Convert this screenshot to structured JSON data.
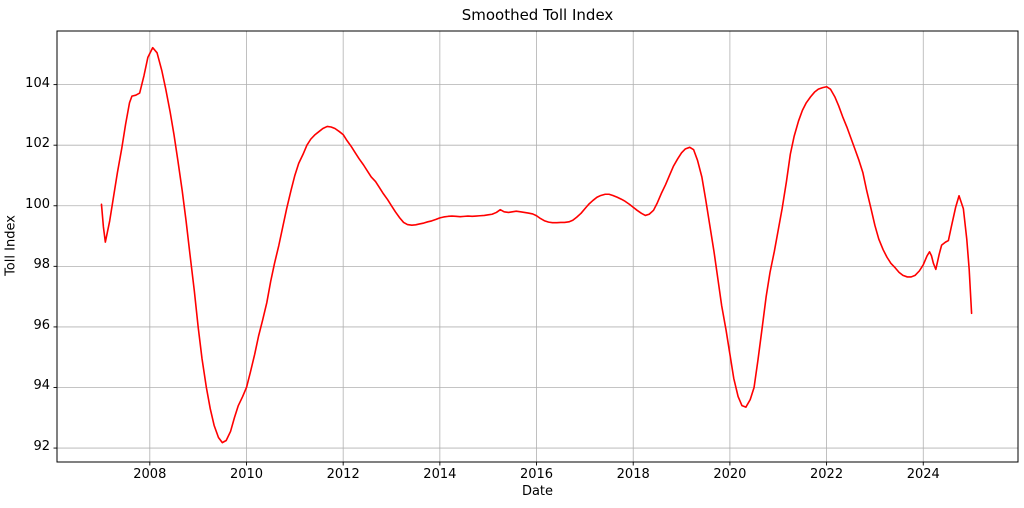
{
  "chart_data": {
    "type": "line",
    "title": "Smoothed Toll Index",
    "xlabel": "Date",
    "ylabel": "Toll Index",
    "xlim": [
      2006.08,
      2025.96
    ],
    "ylim": [
      91.54,
      105.77
    ],
    "xticks": [
      2008,
      2010,
      2012,
      2014,
      2016,
      2018,
      2020,
      2022,
      2024
    ],
    "xtick_labels": [
      "2008",
      "2010",
      "2012",
      "2014",
      "2016",
      "2018",
      "2020",
      "2022",
      "2024"
    ],
    "yticks": [
      92,
      94,
      96,
      98,
      100,
      102,
      104
    ],
    "ytick_labels": [
      "92",
      "94",
      "96",
      "98",
      "100",
      "102",
      "104"
    ],
    "grid": true,
    "legend": "none",
    "line_color": "#ff0000",
    "grid_color": "#b0b0b0",
    "frame_color": "#000000",
    "line_width": 1.6,
    "series": [
      {
        "name": "Smoothed Toll Index",
        "points": [
          [
            2007.0,
            100.05
          ],
          [
            2007.04,
            99.3
          ],
          [
            2007.08,
            98.8
          ],
          [
            2007.17,
            99.5
          ],
          [
            2007.25,
            100.3
          ],
          [
            2007.33,
            101.1
          ],
          [
            2007.42,
            101.9
          ],
          [
            2007.5,
            102.7
          ],
          [
            2007.58,
            103.4
          ],
          [
            2007.63,
            103.62
          ],
          [
            2007.71,
            103.65
          ],
          [
            2007.79,
            103.72
          ],
          [
            2007.88,
            104.3
          ],
          [
            2007.96,
            104.9
          ],
          [
            2008.06,
            105.22
          ],
          [
            2008.15,
            105.05
          ],
          [
            2008.25,
            104.45
          ],
          [
            2008.33,
            103.85
          ],
          [
            2008.42,
            103.1
          ],
          [
            2008.5,
            102.35
          ],
          [
            2008.58,
            101.5
          ],
          [
            2008.67,
            100.5
          ],
          [
            2008.75,
            99.5
          ],
          [
            2008.83,
            98.4
          ],
          [
            2008.92,
            97.2
          ],
          [
            2009.0,
            96.0
          ],
          [
            2009.08,
            94.95
          ],
          [
            2009.17,
            94.0
          ],
          [
            2009.25,
            93.3
          ],
          [
            2009.33,
            92.75
          ],
          [
            2009.42,
            92.35
          ],
          [
            2009.5,
            92.18
          ],
          [
            2009.58,
            92.25
          ],
          [
            2009.67,
            92.55
          ],
          [
            2009.75,
            93.0
          ],
          [
            2009.83,
            93.4
          ],
          [
            2009.92,
            93.7
          ],
          [
            2010.0,
            94.0
          ],
          [
            2010.08,
            94.5
          ],
          [
            2010.17,
            95.1
          ],
          [
            2010.25,
            95.7
          ],
          [
            2010.33,
            96.2
          ],
          [
            2010.42,
            96.8
          ],
          [
            2010.5,
            97.5
          ],
          [
            2010.58,
            98.1
          ],
          [
            2010.67,
            98.7
          ],
          [
            2010.75,
            99.3
          ],
          [
            2010.83,
            99.9
          ],
          [
            2010.92,
            100.5
          ],
          [
            2011.0,
            101.0
          ],
          [
            2011.08,
            101.4
          ],
          [
            2011.17,
            101.7
          ],
          [
            2011.25,
            102.0
          ],
          [
            2011.33,
            102.2
          ],
          [
            2011.42,
            102.35
          ],
          [
            2011.5,
            102.45
          ],
          [
            2011.58,
            102.55
          ],
          [
            2011.67,
            102.62
          ],
          [
            2011.75,
            102.6
          ],
          [
            2011.83,
            102.55
          ],
          [
            2011.92,
            102.45
          ],
          [
            2012.0,
            102.35
          ],
          [
            2012.08,
            102.15
          ],
          [
            2012.17,
            101.95
          ],
          [
            2012.25,
            101.75
          ],
          [
            2012.33,
            101.55
          ],
          [
            2012.42,
            101.35
          ],
          [
            2012.5,
            101.15
          ],
          [
            2012.58,
            100.95
          ],
          [
            2012.67,
            100.8
          ],
          [
            2012.75,
            100.6
          ],
          [
            2012.83,
            100.4
          ],
          [
            2012.92,
            100.2
          ],
          [
            2013.0,
            100.0
          ],
          [
            2013.08,
            99.8
          ],
          [
            2013.17,
            99.6
          ],
          [
            2013.25,
            99.45
          ],
          [
            2013.33,
            99.38
          ],
          [
            2013.42,
            99.36
          ],
          [
            2013.5,
            99.37
          ],
          [
            2013.58,
            99.4
          ],
          [
            2013.67,
            99.43
          ],
          [
            2013.75,
            99.47
          ],
          [
            2013.83,
            99.5
          ],
          [
            2013.92,
            99.55
          ],
          [
            2014.0,
            99.6
          ],
          [
            2014.08,
            99.63
          ],
          [
            2014.17,
            99.65
          ],
          [
            2014.25,
            99.66
          ],
          [
            2014.33,
            99.65
          ],
          [
            2014.42,
            99.64
          ],
          [
            2014.5,
            99.65
          ],
          [
            2014.58,
            99.66
          ],
          [
            2014.67,
            99.65
          ],
          [
            2014.75,
            99.66
          ],
          [
            2014.83,
            99.67
          ],
          [
            2014.92,
            99.68
          ],
          [
            2015.0,
            99.7
          ],
          [
            2015.08,
            99.72
          ],
          [
            2015.17,
            99.78
          ],
          [
            2015.25,
            99.87
          ],
          [
            2015.33,
            99.8
          ],
          [
            2015.42,
            99.78
          ],
          [
            2015.5,
            99.8
          ],
          [
            2015.58,
            99.82
          ],
          [
            2015.67,
            99.8
          ],
          [
            2015.75,
            99.78
          ],
          [
            2015.83,
            99.76
          ],
          [
            2015.92,
            99.73
          ],
          [
            2016.0,
            99.67
          ],
          [
            2016.08,
            99.58
          ],
          [
            2016.17,
            99.5
          ],
          [
            2016.25,
            99.46
          ],
          [
            2016.33,
            99.44
          ],
          [
            2016.42,
            99.44
          ],
          [
            2016.5,
            99.45
          ],
          [
            2016.58,
            99.45
          ],
          [
            2016.67,
            99.47
          ],
          [
            2016.75,
            99.52
          ],
          [
            2016.83,
            99.62
          ],
          [
            2016.92,
            99.75
          ],
          [
            2017.0,
            99.9
          ],
          [
            2017.08,
            100.05
          ],
          [
            2017.17,
            100.18
          ],
          [
            2017.25,
            100.28
          ],
          [
            2017.33,
            100.34
          ],
          [
            2017.42,
            100.38
          ],
          [
            2017.5,
            100.38
          ],
          [
            2017.58,
            100.34
          ],
          [
            2017.67,
            100.28
          ],
          [
            2017.75,
            100.22
          ],
          [
            2017.83,
            100.15
          ],
          [
            2017.92,
            100.05
          ],
          [
            2018.0,
            99.95
          ],
          [
            2018.08,
            99.85
          ],
          [
            2018.17,
            99.75
          ],
          [
            2018.25,
            99.68
          ],
          [
            2018.33,
            99.72
          ],
          [
            2018.42,
            99.85
          ],
          [
            2018.5,
            100.1
          ],
          [
            2018.58,
            100.4
          ],
          [
            2018.67,
            100.7
          ],
          [
            2018.75,
            101.0
          ],
          [
            2018.83,
            101.3
          ],
          [
            2018.92,
            101.55
          ],
          [
            2019.0,
            101.75
          ],
          [
            2019.08,
            101.88
          ],
          [
            2019.17,
            101.93
          ],
          [
            2019.25,
            101.85
          ],
          [
            2019.33,
            101.5
          ],
          [
            2019.42,
            100.95
          ],
          [
            2019.5,
            100.2
          ],
          [
            2019.58,
            99.4
          ],
          [
            2019.67,
            98.5
          ],
          [
            2019.75,
            97.6
          ],
          [
            2019.83,
            96.7
          ],
          [
            2019.92,
            95.9
          ],
          [
            2020.0,
            95.1
          ],
          [
            2020.08,
            94.3
          ],
          [
            2020.17,
            93.7
          ],
          [
            2020.25,
            93.4
          ],
          [
            2020.33,
            93.35
          ],
          [
            2020.42,
            93.6
          ],
          [
            2020.5,
            94.0
          ],
          [
            2020.58,
            94.9
          ],
          [
            2020.67,
            96.0
          ],
          [
            2020.75,
            97.0
          ],
          [
            2020.83,
            97.8
          ],
          [
            2020.92,
            98.5
          ],
          [
            2021.0,
            99.2
          ],
          [
            2021.08,
            99.9
          ],
          [
            2021.17,
            100.8
          ],
          [
            2021.25,
            101.7
          ],
          [
            2021.33,
            102.3
          ],
          [
            2021.42,
            102.8
          ],
          [
            2021.5,
            103.15
          ],
          [
            2021.58,
            103.4
          ],
          [
            2021.67,
            103.6
          ],
          [
            2021.75,
            103.75
          ],
          [
            2021.83,
            103.85
          ],
          [
            2021.92,
            103.9
          ],
          [
            2022.0,
            103.93
          ],
          [
            2022.08,
            103.85
          ],
          [
            2022.17,
            103.6
          ],
          [
            2022.25,
            103.3
          ],
          [
            2022.33,
            102.95
          ],
          [
            2022.42,
            102.6
          ],
          [
            2022.5,
            102.25
          ],
          [
            2022.58,
            101.9
          ],
          [
            2022.67,
            101.5
          ],
          [
            2022.75,
            101.1
          ],
          [
            2022.83,
            100.5
          ],
          [
            2022.92,
            99.9
          ],
          [
            2023.0,
            99.35
          ],
          [
            2023.08,
            98.9
          ],
          [
            2023.17,
            98.55
          ],
          [
            2023.25,
            98.3
          ],
          [
            2023.33,
            98.1
          ],
          [
            2023.42,
            97.95
          ],
          [
            2023.5,
            97.8
          ],
          [
            2023.58,
            97.7
          ],
          [
            2023.67,
            97.65
          ],
          [
            2023.75,
            97.65
          ],
          [
            2023.83,
            97.7
          ],
          [
            2023.92,
            97.85
          ],
          [
            2024.0,
            98.05
          ],
          [
            2024.08,
            98.35
          ],
          [
            2024.13,
            98.48
          ],
          [
            2024.17,
            98.35
          ],
          [
            2024.21,
            98.1
          ],
          [
            2024.26,
            97.9
          ],
          [
            2024.33,
            98.4
          ],
          [
            2024.38,
            98.7
          ],
          [
            2024.46,
            98.8
          ],
          [
            2024.52,
            98.85
          ],
          [
            2024.58,
            99.3
          ],
          [
            2024.67,
            99.95
          ],
          [
            2024.74,
            100.33
          ],
          [
            2024.83,
            99.9
          ],
          [
            2024.9,
            98.9
          ],
          [
            2024.95,
            97.9
          ],
          [
            2025.0,
            96.45
          ]
        ]
      }
    ]
  }
}
